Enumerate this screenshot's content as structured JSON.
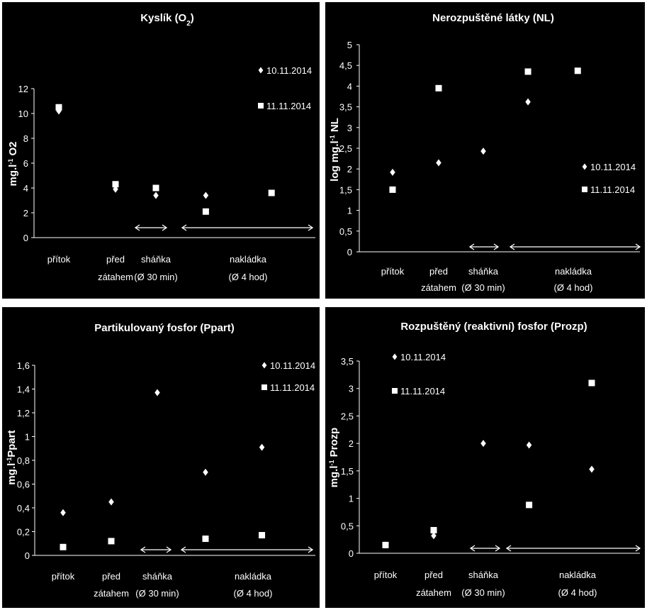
{
  "chart_data": [
    {
      "type": "scatter",
      "title": "Kyslík (O",
      "title_sub": "2",
      "title_end": ")",
      "ylabel": "mg.l",
      "ylabel_sup": "-1",
      "ylabel_end": " O2",
      "ylim": [
        0,
        12
      ],
      "yticks": [
        "0",
        "2",
        "4",
        "6",
        "8",
        "10",
        "12"
      ],
      "categories": [
        [
          "přítok"
        ],
        [
          "před",
          "zátahem"
        ],
        [
          "sháňka",
          "(Ø 30 min)"
        ],
        [
          "nakládka",
          "(Ø 4 hod)"
        ]
      ],
      "legend_position": "top-right",
      "series": [
        {
          "name": "10.11.2014",
          "marker": "diamond",
          "points": [
            [
              0,
              10.2
            ],
            [
              1,
              3.9
            ],
            [
              2,
              3.4
            ],
            [
              2.88,
              3.4
            ]
          ]
        },
        {
          "name": "11.11.2014",
          "marker": "square",
          "points": [
            [
              0,
              10.5
            ],
            [
              1,
              4.3
            ],
            [
              2,
              4.0
            ],
            [
              2.88,
              2.1
            ],
            [
              4.04,
              3.6
            ]
          ]
        }
      ]
    },
    {
      "type": "scatter",
      "title": "Nerozpuštěné látky (NL)",
      "title_sub": "",
      "title_end": "",
      "ylabel": "log mg.l",
      "ylabel_sup": "-1",
      "ylabel_end": " NL",
      "ylim": [
        0,
        5
      ],
      "yticks": [
        "0",
        "0,5",
        "1",
        "1,5",
        "2",
        "2,5",
        "3",
        "3,5",
        "4",
        "4,5",
        "5"
      ],
      "categories": [
        [
          "přítok"
        ],
        [
          "před",
          "zátahem"
        ],
        [
          "sháňka",
          "(Ø 30 min)"
        ],
        [
          "nakládka",
          "(Ø 4 hod)"
        ]
      ],
      "legend_position": "right",
      "series": [
        {
          "name": "10.11.2014",
          "marker": "diamond",
          "points": [
            [
              0,
              1.92
            ],
            [
              1,
              2.15
            ],
            [
              2,
              2.43
            ],
            [
              2.97,
              3.62
            ]
          ]
        },
        {
          "name": "11.11.2014",
          "marker": "square",
          "points": [
            [
              0,
              1.5
            ],
            [
              1,
              3.95
            ],
            [
              2.97,
              4.35
            ],
            [
              4.05,
              4.37
            ]
          ]
        }
      ]
    },
    {
      "type": "scatter",
      "title": "Partikulovaný fosfor (Ppart)",
      "title_sub": "",
      "title_end": "",
      "ylabel": "mg.l",
      "ylabel_sup": "-1",
      "ylabel_end": "Ppart",
      "ylim": [
        0,
        1.6
      ],
      "yticks": [
        "0",
        "0,2",
        "0,4",
        "0,6",
        "0,8",
        "1",
        "1,2",
        "1,4",
        "1,6"
      ],
      "categories": [
        [
          "přítok"
        ],
        [
          "před",
          "zátahem"
        ],
        [
          "sháňka",
          "(Ø 30 min)"
        ],
        [
          "nakládka",
          "(Ø 4 hod)"
        ]
      ],
      "legend_position": "top-right",
      "series": [
        {
          "name": "10.11.2014",
          "marker": "diamond",
          "points": [
            [
              0,
              0.36
            ],
            [
              1,
              0.45
            ],
            [
              2,
              1.37
            ],
            [
              3,
              0.7
            ],
            [
              4.17,
              0.91
            ]
          ]
        },
        {
          "name": "11.11.2014",
          "marker": "square",
          "points": [
            [
              0,
              0.07
            ],
            [
              1,
              0.12
            ],
            [
              3,
              0.14
            ],
            [
              4.17,
              0.17
            ]
          ]
        }
      ]
    },
    {
      "type": "scatter",
      "title": "Rozpuštěný (reaktivní) fosfor (Prozp)",
      "title_sub": "",
      "title_end": "",
      "ylabel": "mg.l",
      "ylabel_sup": "-1",
      "ylabel_end": " Prozp",
      "ylim": [
        0,
        3.5
      ],
      "yticks": [
        "0",
        "0,5",
        "1",
        "1,5",
        "2",
        "2,5",
        "3",
        "3,5"
      ],
      "categories": [
        [
          "přítok"
        ],
        [
          "před",
          "zátahem"
        ],
        [
          "sháňka",
          "(Ø 30 min)"
        ],
        [
          "nakládka",
          "(Ø 4 hod)"
        ]
      ],
      "legend_position": "top-left",
      "series": [
        {
          "name": "10.11.2014",
          "marker": "diamond",
          "points": [
            [
              0,
              0.15
            ],
            [
              1,
              0.32
            ],
            [
              2,
              2.0
            ],
            [
              2.95,
              1.97
            ],
            [
              4.25,
              1.53
            ]
          ]
        },
        {
          "name": "11.11.2014",
          "marker": "square",
          "points": [
            [
              0,
              0.15
            ],
            [
              1,
              0.42
            ],
            [
              2.95,
              0.88
            ],
            [
              4.25,
              3.1
            ]
          ]
        }
      ]
    }
  ]
}
